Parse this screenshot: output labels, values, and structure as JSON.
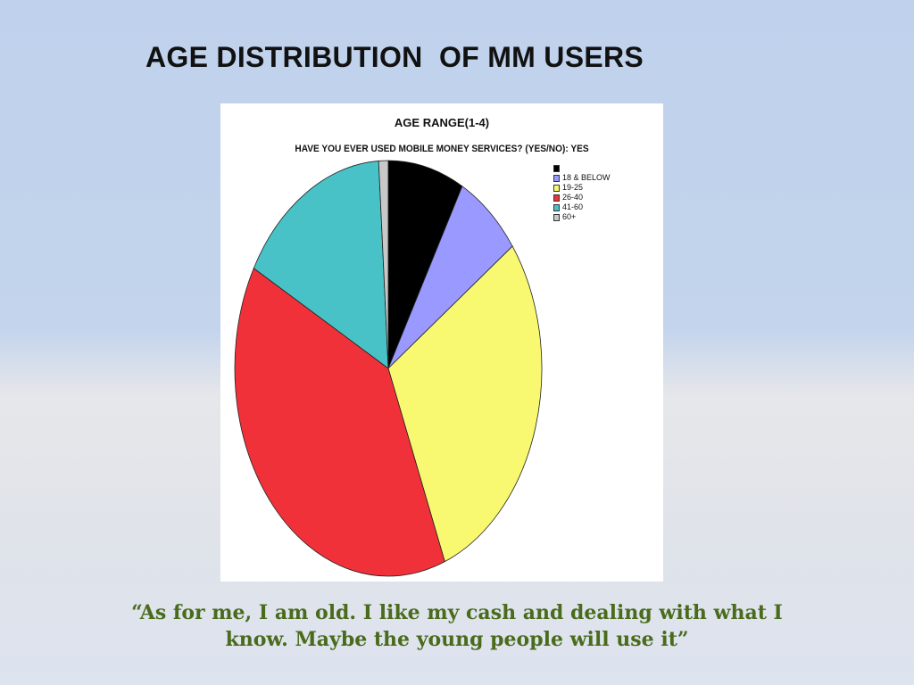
{
  "slide": {
    "title": "AGE DISTRIBUTION  OF MM USERS",
    "quote_line1": "“As for me, I am old. I like my cash and dealing with what I",
    "quote_line2": "know. Maybe the young people will use it”"
  },
  "chart_data": {
    "type": "pie",
    "title": "AGE RANGE(1-4)",
    "subtitle": "HAVE YOU EVER USED MOBILE MONEY SERVICES?  (YES/NO): YES",
    "legend_position": "top-right",
    "start_angle_deg": 0,
    "slices": [
      {
        "label": "",
        "value": 8,
        "color": "#000000"
      },
      {
        "label": "18 & BELOW",
        "value": 7,
        "color": "#9999ff"
      },
      {
        "label": "19-25",
        "value": 29,
        "color": "#f9f871"
      },
      {
        "label": "26-40",
        "value": 39,
        "color": "#f0313a"
      },
      {
        "label": "41-60",
        "value": 16,
        "color": "#48c2c6"
      },
      {
        "label": "60+",
        "value": 1,
        "color": "#c8c8c8"
      }
    ]
  }
}
